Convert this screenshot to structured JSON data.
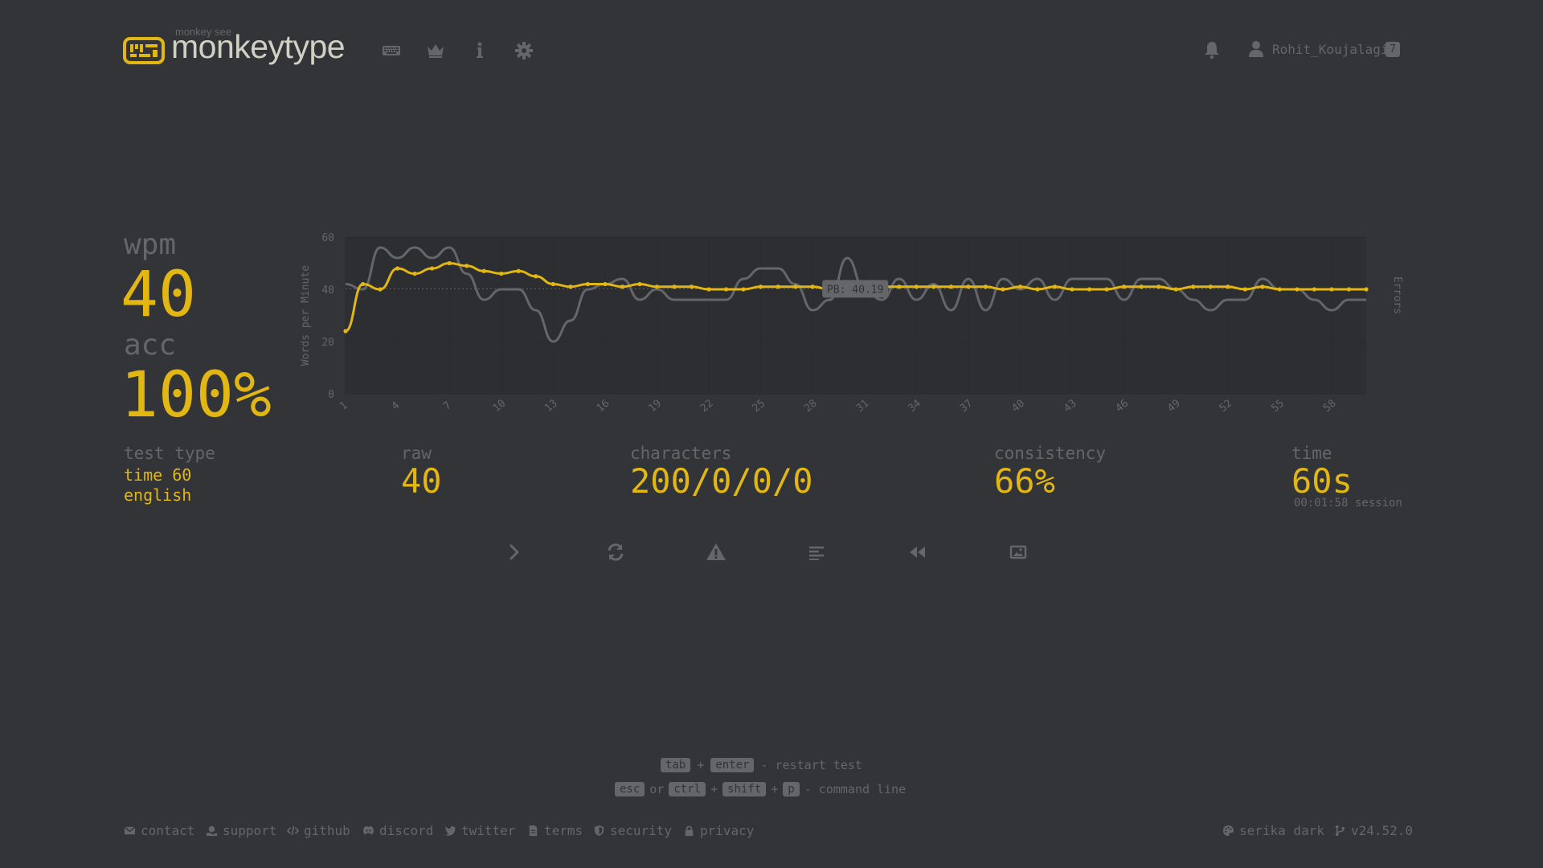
{
  "header": {
    "logo_small": "monkey see",
    "logo_text": "monkeytype",
    "nav_icons": [
      "keyboard-icon",
      "crown-icon",
      "info-icon",
      "gear-icon"
    ],
    "username": "Rohit_Koujalagi",
    "level": "7"
  },
  "result": {
    "wpm_label": "wpm",
    "wpm_value": "40",
    "acc_label": "acc",
    "acc_value": "100%",
    "test_type_label": "test type",
    "test_type_mode": "time 60",
    "test_type_language": "english",
    "raw_label": "raw",
    "raw_value": "40",
    "characters_label": "characters",
    "characters_value": "200/0/0/0",
    "consistency_label": "consistency",
    "consistency_value": "66%",
    "time_label": "time",
    "time_value": "60s",
    "session_text": "00:01:58 session"
  },
  "chart_data": {
    "type": "line",
    "ylabel": "Words per Minute",
    "ylabel_right": "Errors",
    "ylim": [
      0,
      60
    ],
    "yticks": [
      "0",
      "20",
      "40",
      "60"
    ],
    "xticks": [
      "1",
      "4",
      "7",
      "10",
      "13",
      "16",
      "19",
      "22",
      "25",
      "28",
      "31",
      "34",
      "37",
      "40",
      "43",
      "46",
      "49",
      "52",
      "55",
      "58"
    ],
    "pb_label": "PB: 40.19",
    "pb_value": 40.19,
    "x": [
      1,
      2,
      3,
      4,
      5,
      6,
      7,
      8,
      9,
      10,
      11,
      12,
      13,
      14,
      15,
      16,
      17,
      18,
      19,
      20,
      21,
      22,
      23,
      24,
      25,
      26,
      27,
      28,
      29,
      30,
      31,
      32,
      33,
      34,
      35,
      36,
      37,
      38,
      39,
      40,
      41,
      42,
      43,
      44,
      45,
      46,
      47,
      48,
      49,
      50,
      51,
      52,
      53,
      54,
      55,
      56,
      57,
      58,
      59,
      60
    ],
    "series": [
      {
        "values": [
          24,
          42,
          40,
          48,
          46,
          48,
          50,
          49,
          47,
          46,
          47,
          45,
          42,
          41,
          42,
          42,
          41,
          42,
          41,
          41,
          41,
          40,
          40,
          40,
          41,
          41,
          41,
          41,
          40,
          40,
          41,
          41,
          41,
          41,
          41,
          41,
          41,
          41,
          40,
          41,
          40,
          41,
          40,
          40,
          40,
          41,
          41,
          41,
          40,
          41,
          41,
          41,
          40,
          41,
          40,
          40,
          40,
          40,
          40,
          40
        ],
        "color": "#e2b714"
      },
      {
        "values": [
          42,
          40,
          56,
          52,
          56,
          52,
          56,
          46,
          36,
          40,
          40,
          32,
          20,
          28,
          40,
          42,
          44,
          36,
          40,
          36,
          36,
          36,
          36,
          44,
          48,
          48,
          42,
          32,
          36,
          52,
          40,
          36,
          44,
          36,
          42,
          32,
          44,
          32,
          44,
          40,
          44,
          36,
          44,
          44,
          44,
          36,
          44,
          44,
          40,
          36,
          32,
          36,
          36,
          44,
          40,
          40,
          36,
          32,
          36,
          36
        ],
        "color": "#646669"
      }
    ]
  },
  "actions": [
    "next-test-icon",
    "restart-icon",
    "warning-icon",
    "word-history-icon",
    "replay-icon",
    "screenshot-icon"
  ],
  "hints": {
    "line1_key1": "tab",
    "line1_plus": "+",
    "line1_key2": "enter",
    "line1_text": "- restart test",
    "line2_key1": "esc",
    "line2_or": "or",
    "line2_key2": "ctrl",
    "line2_plus1": "+",
    "line2_key3": "shift",
    "line2_plus2": "+",
    "line2_key4": "p",
    "line2_text": "- command line"
  },
  "footer": {
    "contact": "contact",
    "support": "support",
    "github": "github",
    "discord": "discord",
    "twitter": "twitter",
    "terms": "terms",
    "security": "security",
    "privacy": "privacy",
    "theme": "serika dark",
    "version": "v24.52.0"
  },
  "colors": {
    "background": "#323437",
    "main": "#e2b714",
    "sub": "#646669",
    "text": "#d1d0c5"
  }
}
